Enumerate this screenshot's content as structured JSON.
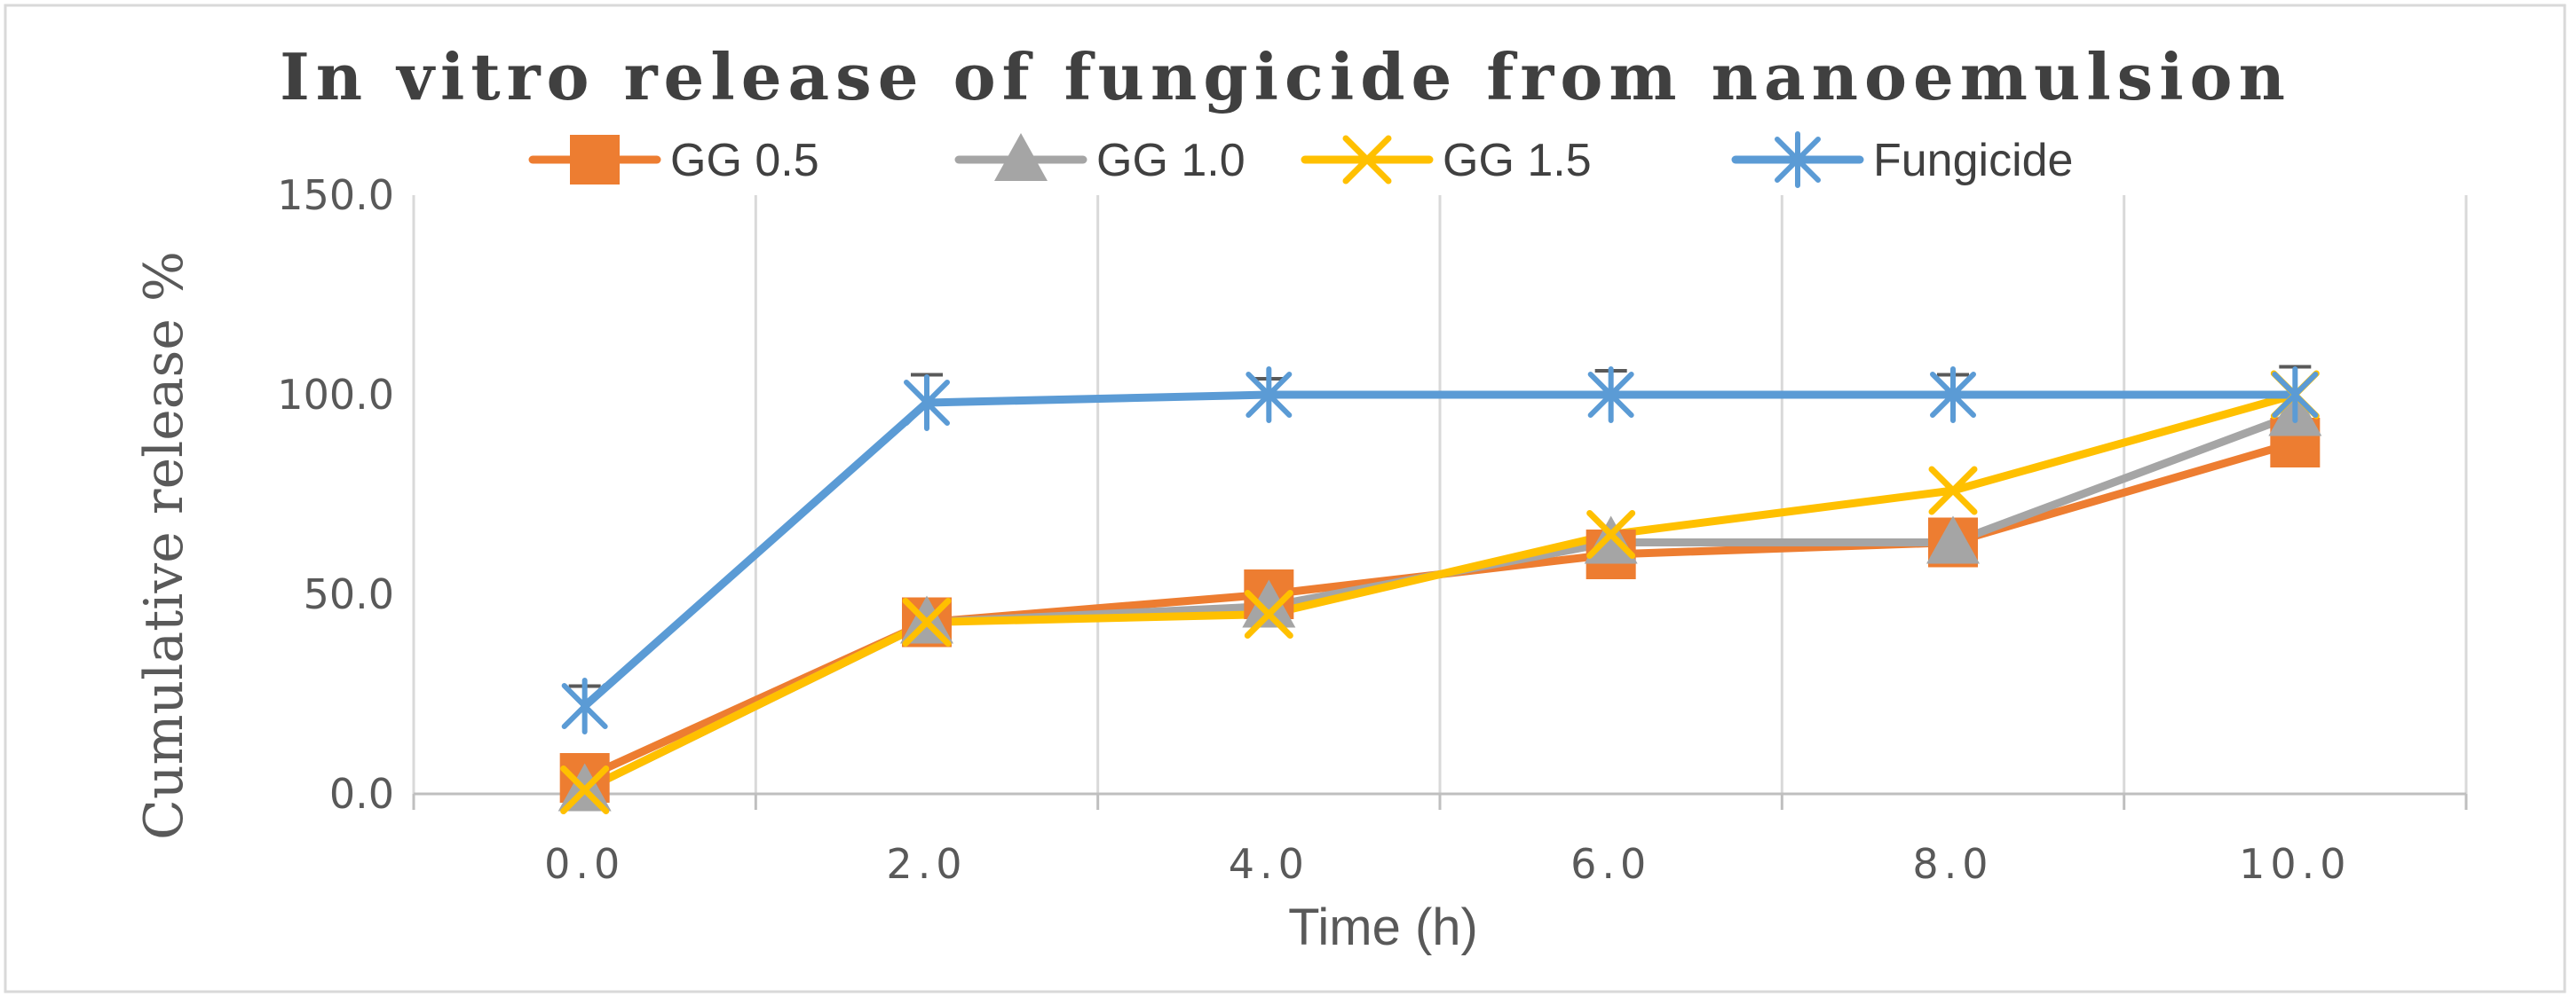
{
  "chart_data": {
    "type": "line",
    "title": "In vitro release of fungicide from nanoemulsion",
    "xlabel": "Time (h)",
    "ylabel": "Cumulative release %",
    "x": [
      0.0,
      2.0,
      4.0,
      6.0,
      8.0,
      10.0
    ],
    "x_tick_labels": [
      "0.0",
      "2.0",
      "4.0",
      "6.0",
      "8.0",
      "10.0"
    ],
    "y_tick_values": [
      0,
      50,
      100,
      150
    ],
    "y_tick_labels": [
      "0.0",
      "50.0",
      "100.0",
      "150.0"
    ],
    "xlim": [
      -1,
      11
    ],
    "ylim": [
      0,
      150
    ],
    "grid": "vertical",
    "legend_position": "top",
    "series": [
      {
        "name": "GG 0.5",
        "color": "#ED7D31",
        "marker": "square",
        "values": [
          4,
          43,
          50,
          60,
          63,
          88
        ]
      },
      {
        "name": "GG 1.0",
        "color": "#A5A5A5",
        "marker": "triangle",
        "values": [
          1,
          43,
          47,
          63,
          63,
          95
        ]
      },
      {
        "name": "GG 1.5",
        "color": "#FFC000",
        "marker": "x",
        "values": [
          1,
          43,
          45,
          65,
          76,
          100
        ]
      },
      {
        "name": "Fungicide",
        "color": "#5B9BD5",
        "marker": "star",
        "values": [
          22,
          98,
          100,
          100,
          100,
          100
        ],
        "error": [
          5,
          7,
          4,
          6,
          5,
          7
        ]
      }
    ]
  }
}
